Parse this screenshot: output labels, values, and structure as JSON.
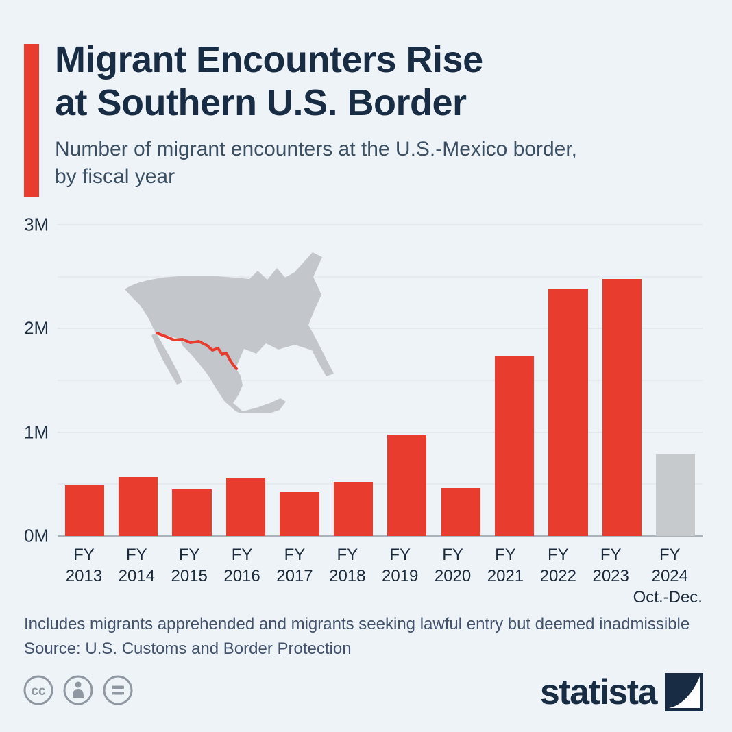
{
  "title": {
    "line1": "Migrant Encounters Rise",
    "line2": "at Southern U.S. Border"
  },
  "subtitle": {
    "line1": "Number of migrant encounters at the U.S.-Mexico border,",
    "line2": "by fiscal year"
  },
  "chart_data": {
    "type": "bar",
    "title": "Migrant Encounters Rise at Southern U.S. Border",
    "subtitle": "Number of migrant encounters at the U.S.-Mexico border, by fiscal year",
    "categories": [
      "FY 2013",
      "FY 2014",
      "FY 2015",
      "FY 2016",
      "FY 2017",
      "FY 2018",
      "FY 2019",
      "FY 2020",
      "FY 2021",
      "FY 2022",
      "FY 2023",
      "FY 2024 (Oct.-Dec.)"
    ],
    "values_millions": [
      0.49,
      0.57,
      0.45,
      0.56,
      0.42,
      0.52,
      0.98,
      0.46,
      1.73,
      2.38,
      2.48,
      0.79
    ],
    "unit": "M",
    "ylim": [
      0,
      3
    ],
    "grid_step": 0.5,
    "yticks": [
      {
        "value": 0,
        "label": "0M"
      },
      {
        "value": 1,
        "label": "1M"
      },
      {
        "value": 2,
        "label": "2M"
      },
      {
        "value": 3,
        "label": "3M"
      }
    ],
    "x_prefix": "FY",
    "x_years": [
      "2013",
      "2014",
      "2015",
      "2016",
      "2017",
      "2018",
      "2019",
      "2020",
      "2021",
      "2022",
      "2023",
      "2024"
    ],
    "final_bar_index": 11,
    "final_bar_note": "Oct.-Dec.",
    "colors": {
      "bar": "#e73c2e",
      "final_bar": "#c6cacd"
    },
    "grid": true,
    "legend": false
  },
  "footnotes": [
    "Includes migrants apprehended and migrants seeking lawful entry but deemed inadmissible",
    "Source: U.S. Customs and Border Protection"
  ],
  "branding": {
    "logo_text": "statista"
  },
  "colors": {
    "accent": "#e73c2e",
    "title": "#182c44",
    "background": "#eef3f8",
    "muted_bar": "#c6cacd",
    "map_gray": "#c3c7cb"
  }
}
